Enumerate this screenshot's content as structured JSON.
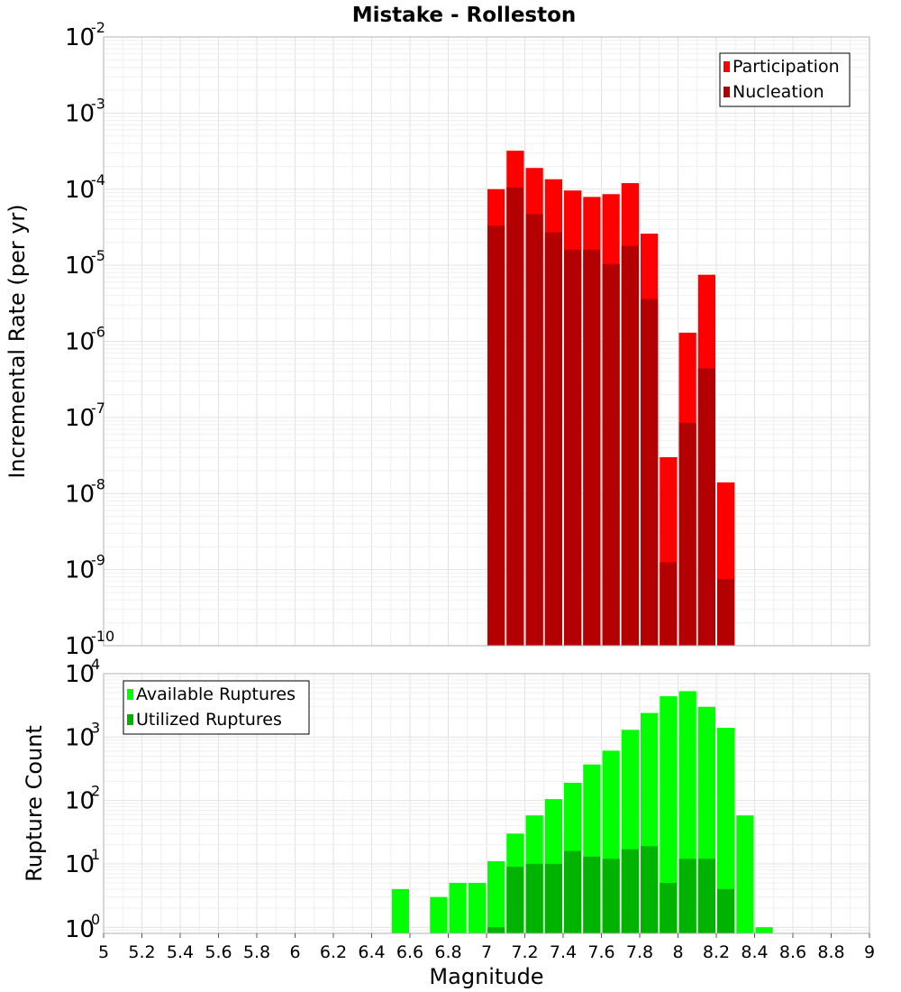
{
  "chart_data": [
    {
      "type": "bar",
      "title": "Mistake - Rolleston",
      "xlabel": "",
      "ylabel": "Incremental Rate (per yr)",
      "yscale": "log",
      "ylim": [
        1e-10,
        0.01
      ],
      "xlim": [
        5,
        9
      ],
      "bar_width": 0.1,
      "grid": true,
      "legend_placement": "top-right",
      "y_ticks": [
        {
          "base": "10",
          "exp": "-10"
        },
        {
          "base": "10",
          "exp": "-9"
        },
        {
          "base": "10",
          "exp": "-8"
        },
        {
          "base": "10",
          "exp": "-7"
        },
        {
          "base": "10",
          "exp": "-6"
        },
        {
          "base": "10",
          "exp": "-5"
        },
        {
          "base": "10",
          "exp": "-4"
        },
        {
          "base": "10",
          "exp": "-3"
        },
        {
          "base": "10",
          "exp": "-2"
        }
      ],
      "x": [
        7.05,
        7.15,
        7.25,
        7.35,
        7.45,
        7.55,
        7.65,
        7.75,
        7.85,
        7.95,
        8.05,
        8.15,
        8.25
      ],
      "series": [
        {
          "name": "Participation",
          "color": "#ff0000",
          "values": [
            0.0001,
            0.00032,
            0.00019,
            0.000135,
            9.6e-05,
            7.9e-05,
            8.6e-05,
            0.00012,
            2.6e-05,
            3e-08,
            1.3e-06,
            7.5e-06,
            1.4e-08
          ]
        },
        {
          "name": "Nucleation",
          "color": "#b30000",
          "values": [
            3.3e-05,
            0.000105,
            4.7e-05,
            2.7e-05,
            1.6e-05,
            1.6e-05,
            1.04e-05,
            1.8e-05,
            3.6e-06,
            1.25e-09,
            8.5e-08,
            4.4e-07,
            7.5e-10
          ]
        }
      ]
    },
    {
      "type": "bar",
      "title": "",
      "xlabel": "Magnitude",
      "ylabel": "Rupture Count",
      "yscale": "log",
      "ylim": [
        0.8,
        10000
      ],
      "xlim": [
        5,
        9
      ],
      "bar_width": 0.1,
      "grid": true,
      "legend_placement": "top-left",
      "y_ticks": [
        {
          "base": "10",
          "exp": "0"
        },
        {
          "base": "10",
          "exp": "1"
        },
        {
          "base": "10",
          "exp": "2"
        },
        {
          "base": "10",
          "exp": "3"
        },
        {
          "base": "10",
          "exp": "4"
        }
      ],
      "x_ticks": [
        "5",
        "5.2",
        "5.4",
        "5.6",
        "5.8",
        "6",
        "6.2",
        "6.4",
        "6.6",
        "6.8",
        "7",
        "7.2",
        "7.4",
        "7.6",
        "7.8",
        "8",
        "8.2",
        "8.4",
        "8.6",
        "8.8",
        "9"
      ],
      "x": [
        6.55,
        6.75,
        6.85,
        6.95,
        7.05,
        7.15,
        7.25,
        7.35,
        7.45,
        7.55,
        7.65,
        7.75,
        7.85,
        7.95,
        8.05,
        8.15,
        8.25,
        8.35,
        8.45
      ],
      "series": [
        {
          "name": "Available Ruptures",
          "color": "#00ff00",
          "values": [
            4,
            3,
            5,
            5,
            11,
            30,
            58,
            105,
            190,
            370,
            610,
            1300,
            2400,
            4400,
            5300,
            3000,
            1400,
            58,
            1
          ]
        },
        {
          "name": "Utilized Ruptures",
          "color": "#00b300",
          "values": [
            0,
            0,
            0,
            0,
            1,
            9,
            10,
            10,
            16,
            13,
            12,
            17,
            19,
            5,
            12,
            12,
            4,
            0,
            0
          ]
        }
      ]
    }
  ]
}
